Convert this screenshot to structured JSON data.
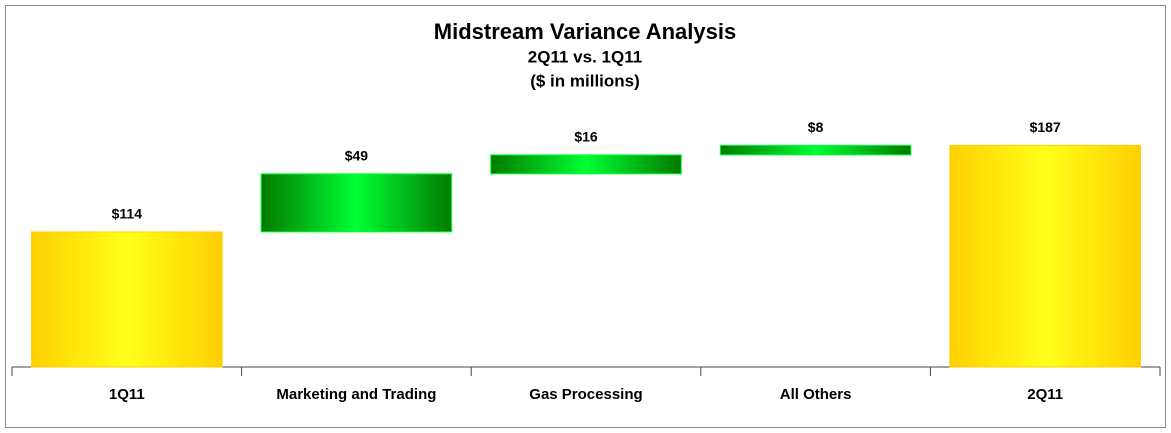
{
  "chart_data": {
    "type": "waterfall",
    "title": "Midstream Variance Analysis",
    "subtitle": "2Q11 vs. 1Q11",
    "units_label": "($ in millions)",
    "categories": [
      "1Q11",
      "Marketing and Trading",
      "Gas Processing",
      "All Others",
      "2Q11"
    ],
    "values": [
      114,
      49,
      16,
      8,
      187
    ],
    "value_labels": [
      "$114",
      "$49",
      "$16",
      "$8",
      "$187"
    ],
    "totals": [
      true,
      false,
      false,
      false,
      true
    ],
    "total_color": [
      "#ffd000",
      "#ffff1a"
    ],
    "delta_color": [
      "#007a00",
      "#00ff33"
    ],
    "ylim": [
      0,
      200
    ]
  }
}
